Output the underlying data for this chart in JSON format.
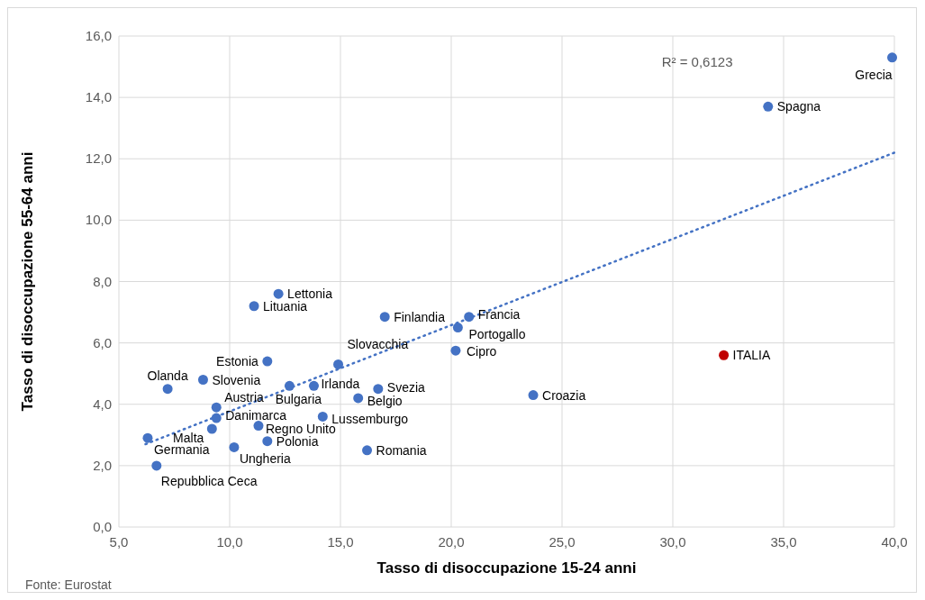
{
  "chart_data": {
    "type": "scatter",
    "xlabel": "Tasso di disoccupazione 15-24 anni",
    "ylabel": "Tasso di disoccupazione 55-64 anni",
    "xlim": [
      5,
      40
    ],
    "xticks": [
      {
        "value": 5,
        "label": "5,0"
      },
      {
        "value": 10,
        "label": "10,0"
      },
      {
        "value": 15,
        "label": "15,0"
      },
      {
        "value": 20,
        "label": "20,0"
      },
      {
        "value": 25,
        "label": "25,0"
      },
      {
        "value": 30,
        "label": "30,0"
      },
      {
        "value": 35,
        "label": "35,0"
      },
      {
        "value": 40,
        "label": "40,0"
      }
    ],
    "ylim": [
      0,
      16
    ],
    "yticks": [
      {
        "value": 0,
        "label": "0,0"
      },
      {
        "value": 2,
        "label": "2,0"
      },
      {
        "value": 4,
        "label": "4,0"
      },
      {
        "value": 6,
        "label": "6,0"
      },
      {
        "value": 8,
        "label": "8,0"
      },
      {
        "value": 10,
        "label": "10,0"
      },
      {
        "value": 12,
        "label": "12,0"
      },
      {
        "value": 14,
        "label": "14,0"
      },
      {
        "value": 16,
        "label": "16,0"
      }
    ],
    "grid": true,
    "marker": "circle",
    "series": [
      {
        "name": "Grecia",
        "color": "#4472c4",
        "x": [
          39.9
        ],
        "values": [
          15.3
        ]
      },
      {
        "name": "Spagna",
        "color": "#4472c4",
        "x": [
          34.3
        ],
        "values": [
          13.7
        ]
      },
      {
        "name": "ITALIA",
        "color": "#c00000",
        "x": [
          32.3
        ],
        "values": [
          5.6
        ]
      },
      {
        "name": "Croazia",
        "color": "#4472c4",
        "x": [
          23.7
        ],
        "values": [
          4.3
        ]
      },
      {
        "name": "Cipro",
        "color": "#4472c4",
        "x": [
          20.2
        ],
        "values": [
          5.75
        ]
      },
      {
        "name": "Portogallo",
        "color": "#4472c4",
        "x": [
          20.3
        ],
        "values": [
          6.5
        ]
      },
      {
        "name": "Francia",
        "color": "#4472c4",
        "x": [
          20.8
        ],
        "values": [
          6.85
        ]
      },
      {
        "name": "Finlandia",
        "color": "#4472c4",
        "x": [
          17.0
        ],
        "values": [
          6.85
        ]
      },
      {
        "name": "Lettonia",
        "color": "#4472c4",
        "x": [
          12.2
        ],
        "values": [
          7.6
        ]
      },
      {
        "name": "Lituania",
        "color": "#4472c4",
        "x": [
          11.1
        ],
        "values": [
          7.2
        ]
      },
      {
        "name": "Estonia",
        "color": "#4472c4",
        "x": [
          11.7
        ],
        "values": [
          5.4
        ]
      },
      {
        "name": "Slovacchia",
        "color": "#4472c4",
        "x": [
          14.9
        ],
        "values": [
          5.3
        ]
      },
      {
        "name": "Slovenia",
        "color": "#4472c4",
        "x": [
          8.8
        ],
        "values": [
          4.8
        ]
      },
      {
        "name": "Olanda",
        "color": "#4472c4",
        "x": [
          7.2
        ],
        "values": [
          4.5
        ]
      },
      {
        "name": "Bulgaria",
        "color": "#4472c4",
        "x": [
          12.7
        ],
        "values": [
          4.6
        ]
      },
      {
        "name": "Irlanda",
        "color": "#4472c4",
        "x": [
          13.8
        ],
        "values": [
          4.6
        ]
      },
      {
        "name": "Svezia",
        "color": "#4472c4",
        "x": [
          16.7
        ],
        "values": [
          4.5
        ]
      },
      {
        "name": "Belgio",
        "color": "#4472c4",
        "x": [
          15.8
        ],
        "values": [
          4.2
        ]
      },
      {
        "name": "Austria",
        "color": "#4472c4",
        "x": [
          9.4
        ],
        "values": [
          3.9
        ]
      },
      {
        "name": "Danimarca",
        "color": "#4472c4",
        "x": [
          9.4
        ],
        "values": [
          3.55
        ]
      },
      {
        "name": "Malta",
        "color": "#4472c4",
        "x": [
          9.2
        ],
        "values": [
          3.2
        ]
      },
      {
        "name": "Regno Unito",
        "color": "#4472c4",
        "x": [
          11.3
        ],
        "values": [
          3.3
        ]
      },
      {
        "name": "Lussemburgo",
        "color": "#4472c4",
        "x": [
          14.2
        ],
        "values": [
          3.6
        ]
      },
      {
        "name": "Polonia",
        "color": "#4472c4",
        "x": [
          11.7
        ],
        "values": [
          2.8
        ]
      },
      {
        "name": "Ungheria",
        "color": "#4472c4",
        "x": [
          10.2
        ],
        "values": [
          2.6
        ]
      },
      {
        "name": "Romania",
        "color": "#4472c4",
        "x": [
          16.2
        ],
        "values": [
          2.5
        ]
      },
      {
        "name": "Germania",
        "color": "#4472c4",
        "x": [
          6.3
        ],
        "values": [
          2.9
        ]
      },
      {
        "name": "Repubblica Ceca",
        "color": "#4472c4",
        "x": [
          6.7
        ],
        "values": [
          2.0
        ]
      },
      {
        "type": "line",
        "color": "#4472c4",
        "line_style": "dotted",
        "marker": "none",
        "x": [
          6.2,
          40
        ],
        "values": [
          2.7,
          12.2
        ]
      }
    ],
    "annotations": [
      "R² = 0,6123",
      "Fonte: Eurostat"
    ]
  }
}
